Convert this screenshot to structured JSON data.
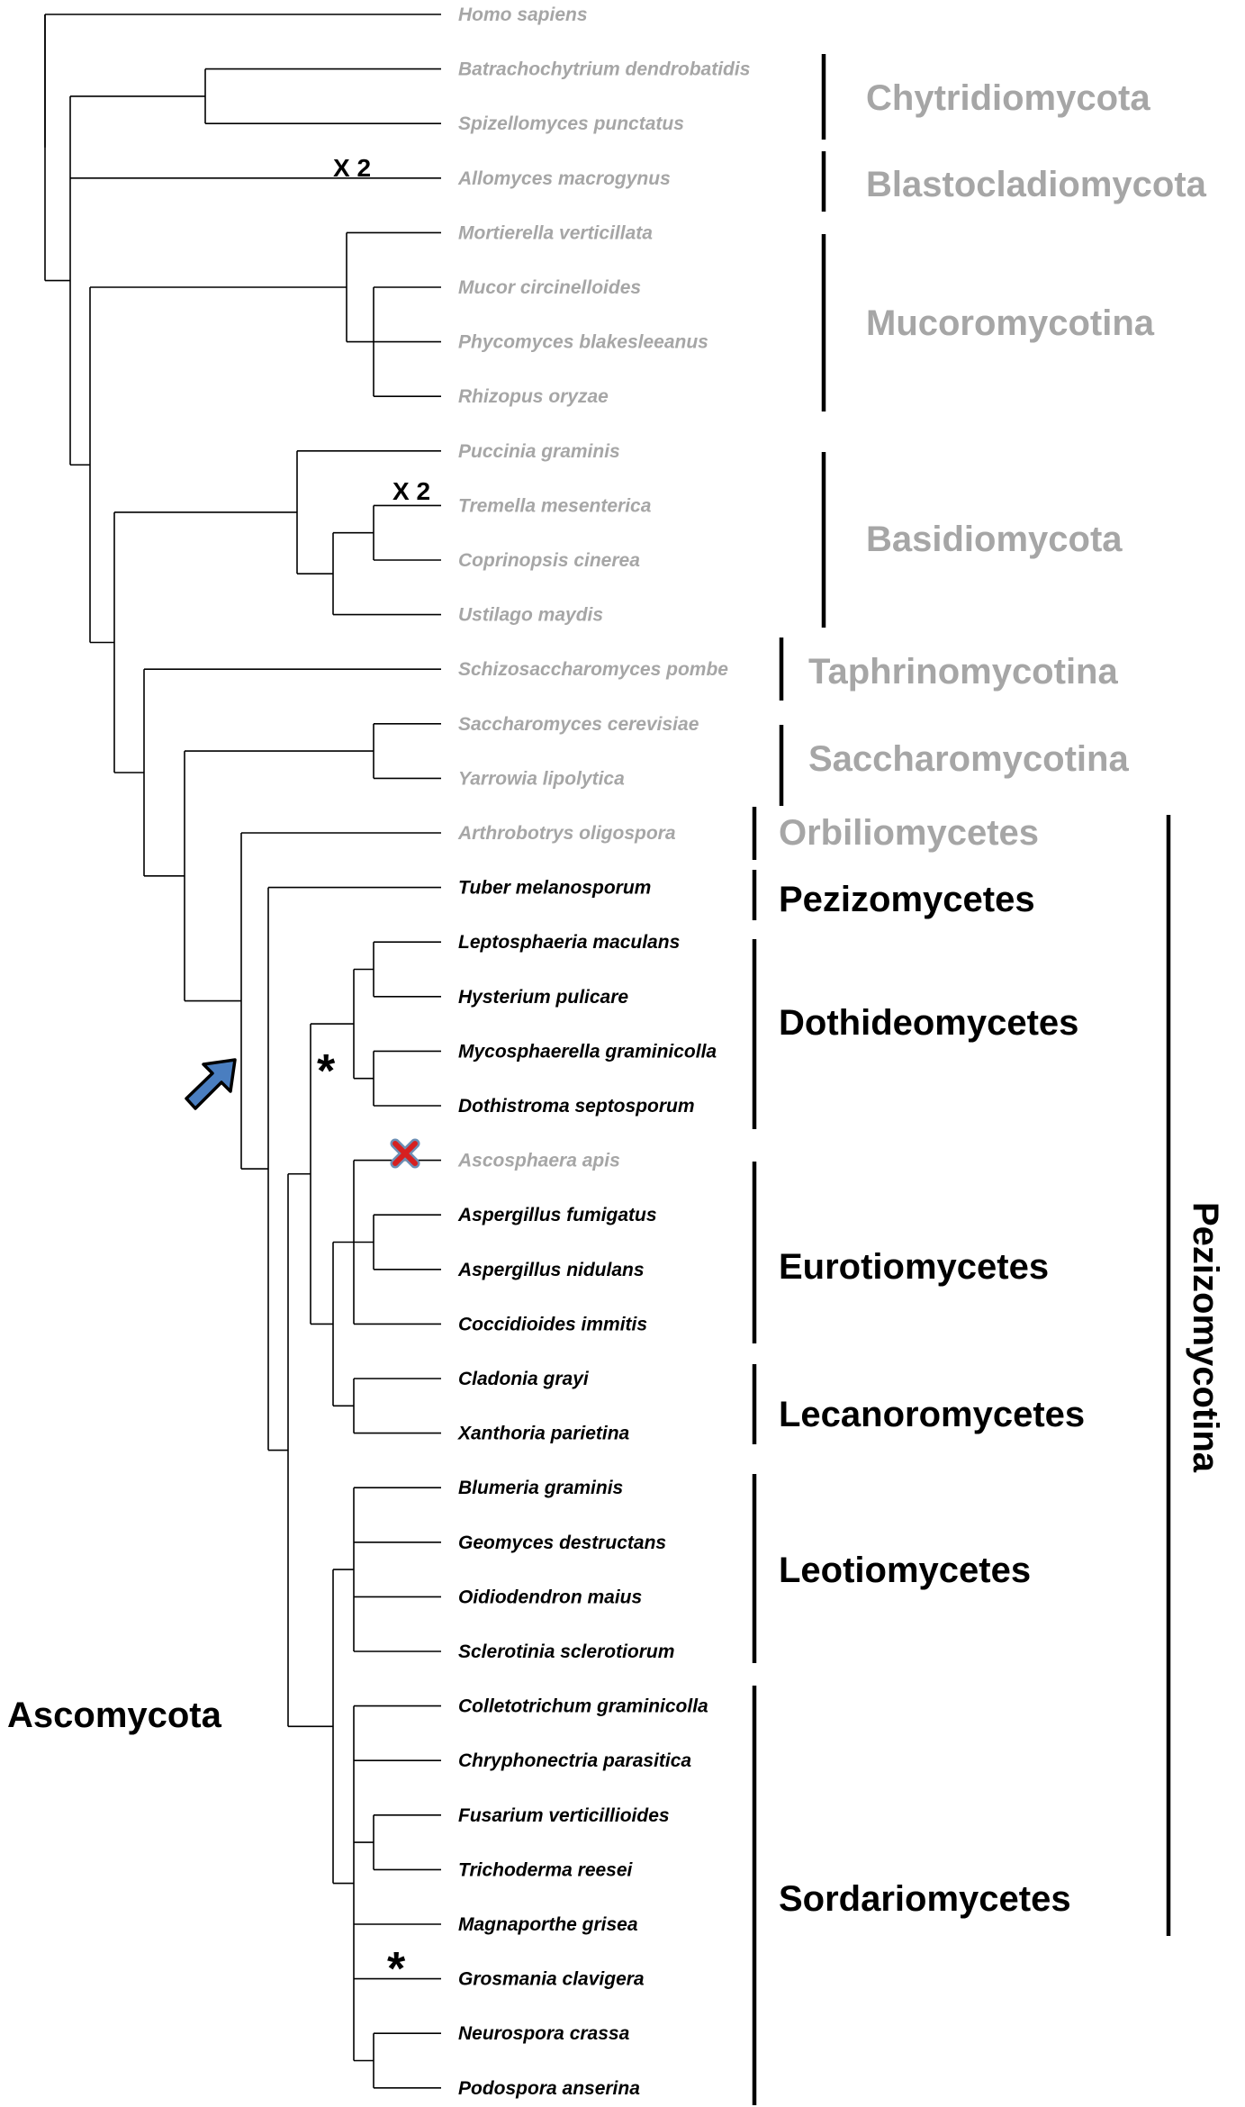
{
  "taxa": [
    {
      "name": "Homo sapiens",
      "color": "#a6a6a6"
    },
    {
      "name": "Batrachochytrium dendrobatidis",
      "color": "#a6a6a6"
    },
    {
      "name": "Spizellomyces punctatus",
      "color": "#a6a6a6"
    },
    {
      "name": "Allomyces macrogynus",
      "color": "#a6a6a6"
    },
    {
      "name": "Mortierella verticillata",
      "color": "#a6a6a6"
    },
    {
      "name": "Mucor circinelloides",
      "color": "#a6a6a6"
    },
    {
      "name": "Phycomyces blakesleeanus",
      "color": "#a6a6a6"
    },
    {
      "name": "Rhizopus oryzae",
      "color": "#a6a6a6"
    },
    {
      "name": "Puccinia graminis",
      "color": "#a6a6a6"
    },
    {
      "name": "Tremella mesenterica",
      "color": "#a6a6a6"
    },
    {
      "name": "Coprinopsis  cinerea",
      "color": "#a6a6a6"
    },
    {
      "name": "Ustilago maydis",
      "color": "#a6a6a6"
    },
    {
      "name": "Schizosaccharomyces pombe",
      "color": "#a6a6a6"
    },
    {
      "name": "Saccharomyces cerevisiae",
      "color": "#a6a6a6"
    },
    {
      "name": "Yarrowia lipolytica",
      "color": "#a6a6a6"
    },
    {
      "name": "Arthrobotrys oligospora",
      "color": "#a6a6a6"
    },
    {
      "name": "Tuber melanosporum",
      "color": "#000000"
    },
    {
      "name": "Leptosphaeria maculans",
      "color": "#000000"
    },
    {
      "name": "Hysterium pulicare",
      "color": "#000000"
    },
    {
      "name": "Mycosphaerella graminicolla",
      "color": "#000000"
    },
    {
      "name": "Dothistroma septosporum",
      "color": "#000000"
    },
    {
      "name": "Ascosphaera apis",
      "color": "#a6a6a6"
    },
    {
      "name": "Aspergillus fumigatus",
      "color": "#000000"
    },
    {
      "name": "Aspergillus nidulans",
      "color": "#000000"
    },
    {
      "name": "Coccidioides immitis",
      "color": "#000000"
    },
    {
      "name": "Cladonia grayi",
      "color": "#000000"
    },
    {
      "name": "Xanthoria parietina",
      "color": "#000000"
    },
    {
      "name": "Blumeria graminis",
      "color": "#000000"
    },
    {
      "name": "Geomyces destructans",
      "color": "#000000"
    },
    {
      "name": "Oidiodendron maius",
      "color": "#000000"
    },
    {
      "name": "Sclerotinia sclerotiorum",
      "color": "#000000"
    },
    {
      "name": "Colletotrichum graminicolla",
      "color": "#000000"
    },
    {
      "name": "Chryphonectria parasitica",
      "color": "#000000"
    },
    {
      "name": "Fusarium verticillioides",
      "color": "#000000"
    },
    {
      "name": "Trichoderma reesei",
      "color": "#000000"
    },
    {
      "name": "Magnaporthe grisea",
      "color": "#000000"
    },
    {
      "name": "Grosmania clavigera",
      "color": "#000000"
    },
    {
      "name": "Neurospora crassa",
      "color": "#000000"
    },
    {
      "name": "Podospora anserina",
      "color": "#000000"
    }
  ],
  "groups": [
    {
      "label": "Chytridiomycota",
      "color": "#a6a6a6"
    },
    {
      "label": "Blastocladiomycota",
      "color": "#a6a6a6"
    },
    {
      "label": "Mucoromycotina",
      "color": "#a6a6a6"
    },
    {
      "label": "Basidiomycota",
      "color": "#a6a6a6"
    },
    {
      "label": "Taphrinomycotina",
      "color": "#a6a6a6"
    },
    {
      "label": "Saccharomycotina",
      "color": "#a6a6a6"
    },
    {
      "label": "Orbiliomycetes",
      "color": "#a6a6a6"
    },
    {
      "label": "Pezizomycetes",
      "color": "#000000"
    },
    {
      "label": "Dothideomycetes",
      "color": "#000000"
    },
    {
      "label": "Eurotiomycetes",
      "color": "#000000"
    },
    {
      "label": "Lecanoromycetes",
      "color": "#000000"
    },
    {
      "label": "Leotiomycetes",
      "color": "#000000"
    },
    {
      "label": "Sordariomycetes",
      "color": "#000000"
    }
  ],
  "subphylum_label": "Pezizomycotina",
  "phylum_label": "Ascomycota",
  "duplication_marks": [
    "X 2",
    "X 2"
  ],
  "asterisk_marks": [
    "*",
    "*"
  ],
  "marker_colors": {
    "arrow": "#4a7ec0",
    "cross": "#d62020",
    "cross_outline": "#6d8fb5"
  }
}
